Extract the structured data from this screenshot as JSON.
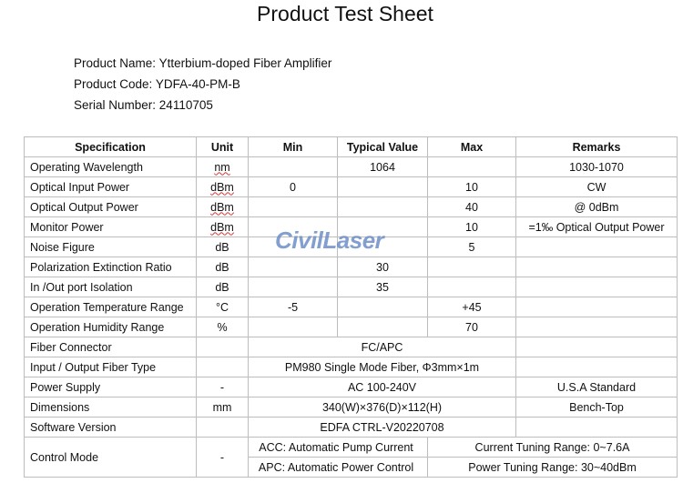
{
  "title": "Product Test Sheet",
  "info": [
    {
      "label": "Product Name:",
      "value": "Ytterbium-doped Fiber Amplifier"
    },
    {
      "label": "Product Code:",
      "value": "YDFA-40-PM-B"
    },
    {
      "label": "Serial Number:",
      "value": "24110705"
    }
  ],
  "headers": [
    "Specification",
    "Unit",
    "Min",
    "Typical Value",
    "Max",
    "Remarks"
  ],
  "rows": [
    [
      "Operating Wavelength",
      "nm",
      "",
      "1064",
      "",
      "1030-1070"
    ],
    [
      "Optical Input Power",
      "dBm",
      "0",
      "",
      "10",
      "CW"
    ],
    [
      "Optical Output Power",
      "dBm",
      "",
      "",
      "40",
      "@ 0dBm"
    ],
    [
      "Monitor Power",
      "dBm",
      "",
      "",
      "10",
      "=1‰  Optical Output Power"
    ],
    [
      "Noise Figure",
      "dB",
      "",
      "",
      "5",
      ""
    ],
    [
      "Polarization Extinction Ratio",
      "dB",
      "",
      "30",
      "",
      ""
    ],
    [
      "In /Out port Isolation",
      "dB",
      "",
      "35",
      "",
      ""
    ],
    [
      "Operation Temperature Range",
      "°C",
      "-5",
      "",
      "+45",
      ""
    ],
    [
      "Operation Humidity Range",
      "%",
      "",
      "",
      "70",
      ""
    ]
  ],
  "merged_rows": [
    [
      "Fiber Connector",
      "",
      "FC/APC",
      ""
    ],
    [
      "Input / Output Fiber Type",
      "",
      "PM980 Single Mode Fiber,  Φ3mm×1m",
      ""
    ],
    [
      "Power Supply",
      "-",
      "AC 100-240V",
      "U.S.A Standard"
    ],
    [
      "Dimensions",
      "mm",
      "340(W)×376(D)×112(H)",
      "Bench-Top"
    ],
    [
      "Software Version",
      "",
      "EDFA CTRL-V20220708",
      ""
    ]
  ],
  "control_mode": {
    "spec": "Control Mode",
    "unit": "-",
    "modes": [
      {
        "mode": "ACC: Automatic Pump Current",
        "range": "Current Tuning Range: 0~7.6A"
      },
      {
        "mode": "APC: Automatic Power Control",
        "range": "Power Tuning Range: 30~40dBm"
      }
    ]
  },
  "watermark": "CivilLaser",
  "watermark_color": "#6d8fc8"
}
